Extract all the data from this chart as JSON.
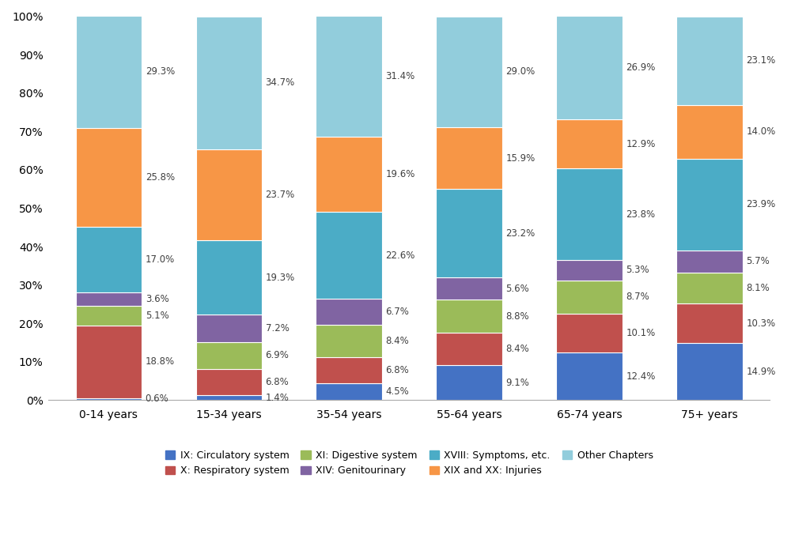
{
  "categories": [
    "0-14 years",
    "15-34 years",
    "35-54 years",
    "55-64 years",
    "65-74 years",
    "75+ years"
  ],
  "series": [
    {
      "name": "IX: Circulatory system",
      "values": [
        0.6,
        1.4,
        4.5,
        9.1,
        12.4,
        14.9
      ],
      "color": "#4472C4"
    },
    {
      "name": "X: Respiratory system",
      "values": [
        18.8,
        6.8,
        6.8,
        8.4,
        10.1,
        10.3
      ],
      "color": "#C0504D"
    },
    {
      "name": "XI: Digestive system",
      "values": [
        5.1,
        6.9,
        8.4,
        8.8,
        8.7,
        8.1
      ],
      "color": "#9BBB59"
    },
    {
      "name": "XIV: Genitourinary",
      "values": [
        3.6,
        7.2,
        6.7,
        5.6,
        5.3,
        5.7
      ],
      "color": "#8064A2"
    },
    {
      "name": "XVIII: Symptoms, etc.",
      "values": [
        17.0,
        19.3,
        22.6,
        23.2,
        23.8,
        23.9
      ],
      "color": "#4BACC6"
    },
    {
      "name": "XIX and XX: Injuries",
      "values": [
        25.8,
        23.7,
        19.6,
        15.9,
        12.9,
        14.0
      ],
      "color": "#F79646"
    },
    {
      "name": "Other Chapters",
      "values": [
        29.3,
        34.7,
        31.4,
        29.0,
        26.9,
        23.1
      ],
      "color": "#92CDDC"
    }
  ],
  "legend_row1": [
    "IX: Circulatory system",
    "X: Respiratory system",
    "XI: Digestive system",
    "XIV: Genitourinary"
  ],
  "legend_row2": [
    "XVIII: Symptoms, etc.",
    "XIX and XX: Injuries",
    "Other Chapters"
  ],
  "ylim": [
    0,
    100
  ],
  "ytick_labels": [
    "0%",
    "10%",
    "20%",
    "30%",
    "40%",
    "50%",
    "60%",
    "70%",
    "80%",
    "90%",
    "100%"
  ],
  "background_color": "#FFFFFF",
  "bar_width": 0.55,
  "figsize": [
    10.0,
    6.96
  ],
  "dpi": 100,
  "label_fontsize": 8.5,
  "tick_fontsize": 10
}
